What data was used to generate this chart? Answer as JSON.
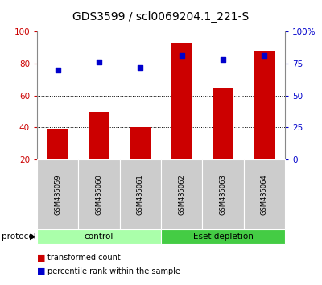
{
  "title": "GDS3599 / scl0069204.1_221-S",
  "samples": [
    "GSM435059",
    "GSM435060",
    "GSM435061",
    "GSM435062",
    "GSM435063",
    "GSM435064"
  ],
  "bar_values": [
    39,
    50,
    40,
    93,
    65,
    88
  ],
  "scatter_values": [
    70,
    76,
    72,
    81,
    78,
    81
  ],
  "bar_color": "#cc0000",
  "scatter_color": "#0000cc",
  "ylim_left": [
    20,
    100
  ],
  "ylim_right": [
    0,
    100
  ],
  "yticks_left": [
    20,
    40,
    60,
    80,
    100
  ],
  "yticks_right": [
    0,
    25,
    50,
    75,
    100
  ],
  "ytick_labels_right": [
    "0",
    "25",
    "50",
    "75",
    "100%"
  ],
  "grid_values": [
    40,
    60,
    80
  ],
  "groups": [
    {
      "label": "control",
      "indices": [
        0,
        1,
        2
      ],
      "color": "#aaffaa"
    },
    {
      "label": "Eset depletion",
      "indices": [
        3,
        4,
        5
      ],
      "color": "#44cc44"
    }
  ],
  "protocol_label": "protocol",
  "legend_bar_label": "transformed count",
  "legend_scatter_label": "percentile rank within the sample",
  "background_color": "#ffffff",
  "plot_bg_color": "#ffffff",
  "sample_box_color": "#cccccc",
  "title_fontsize": 10,
  "axis_label_color_left": "#cc0000",
  "axis_label_color_right": "#0000cc",
  "bar_width": 0.5
}
